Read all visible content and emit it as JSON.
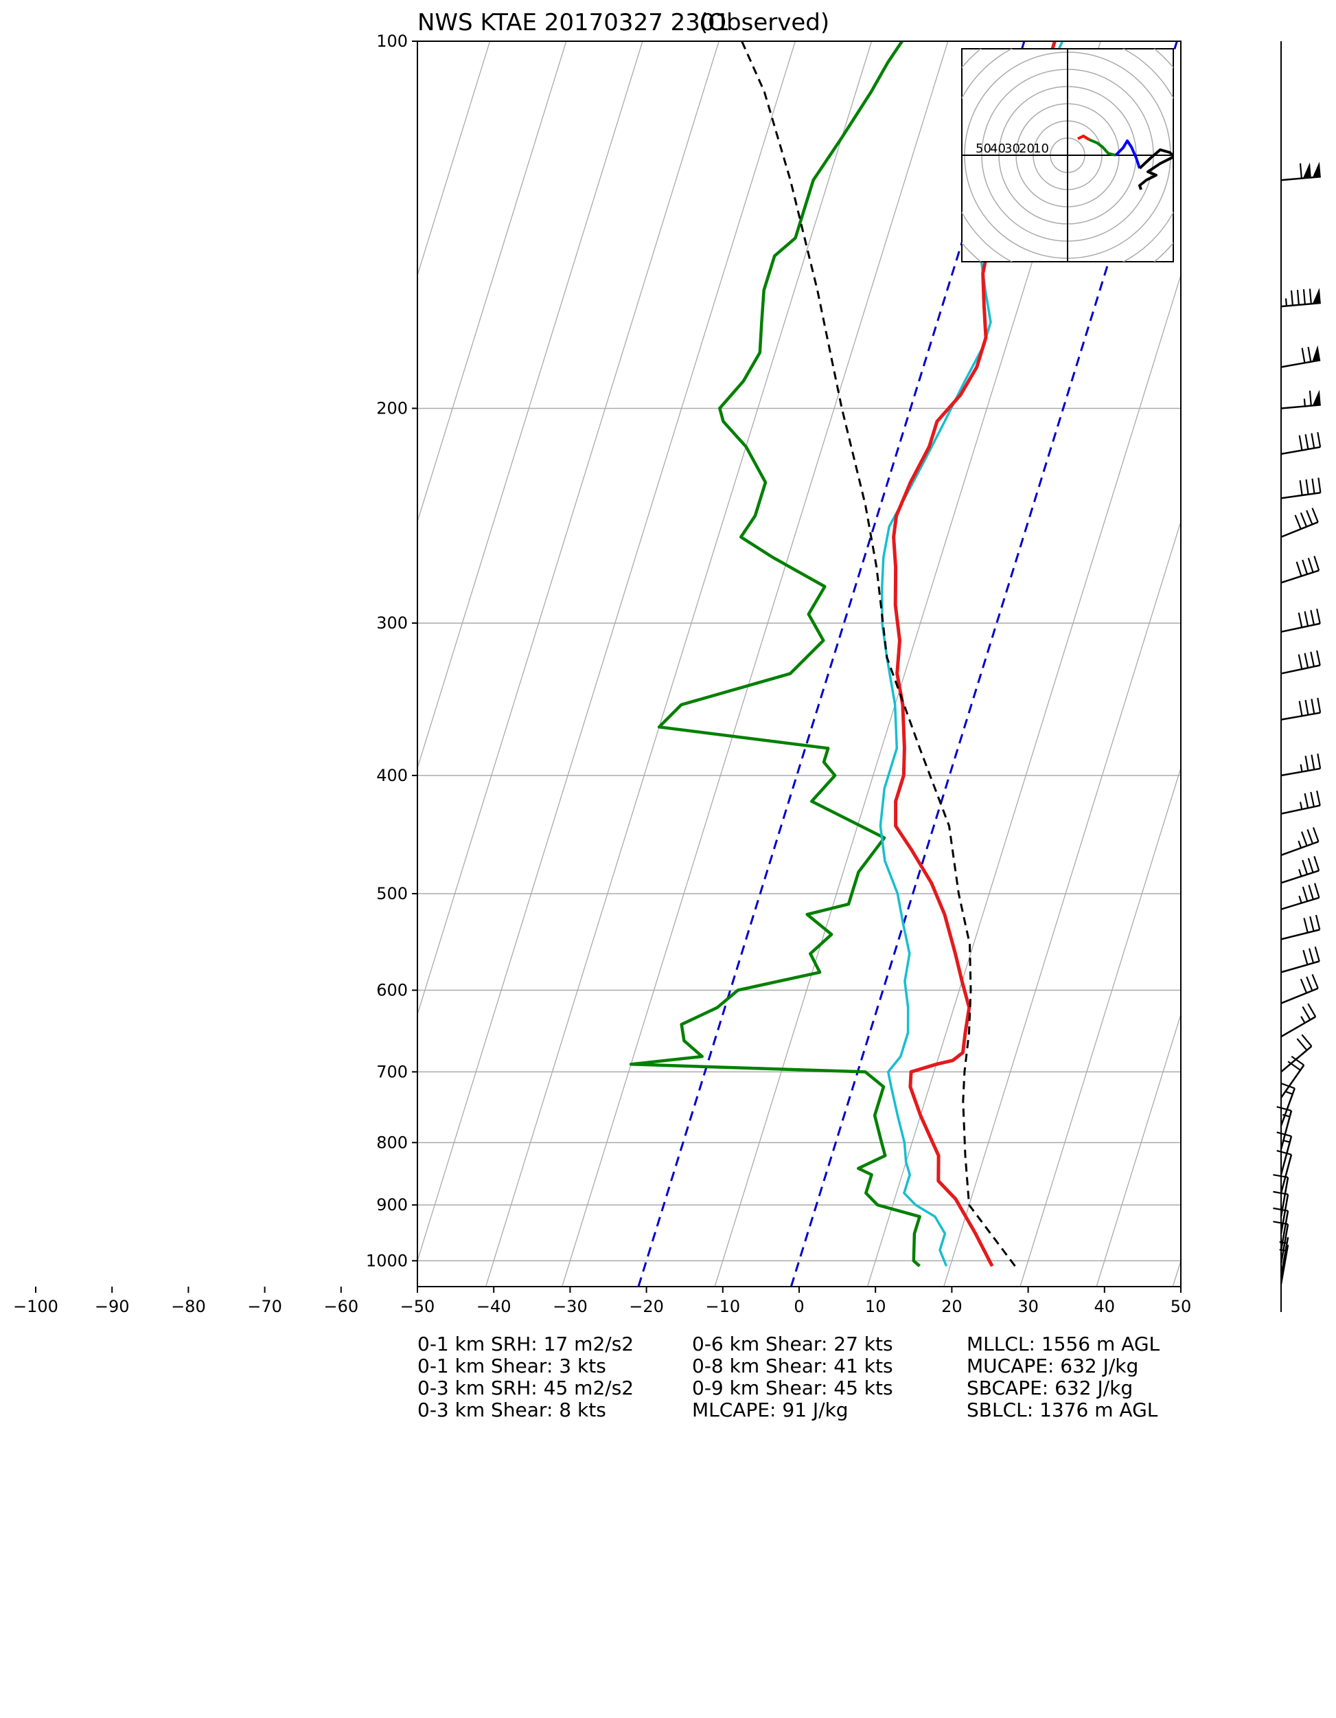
{
  "chart_data": {
    "type": "line",
    "title": "NWS KTAE 20170327 2301",
    "subtitle": "(Observed)",
    "x_ticks": [
      -100,
      -90,
      -80,
      -70,
      -60,
      -50,
      -40,
      -30,
      -20,
      -10,
      0,
      10,
      20,
      30,
      40,
      50
    ],
    "xlim": [
      -50,
      50
    ],
    "ylim": [
      1050,
      100
    ],
    "y_scale": "log",
    "y_ticks": [
      100,
      200,
      300,
      400,
      500,
      600,
      700,
      800,
      900,
      1000
    ],
    "grid": true,
    "isotherms_highlighted": [
      -20,
      0
    ],
    "colors": {
      "temperature": "#e41a1c",
      "dewpoint": "#008000",
      "wetbulb": "#17becf",
      "parcel": "#000000",
      "highlight_isotherm": "#0000cc",
      "grid": "#aaaaaa"
    },
    "series": [
      {
        "key": "temperature",
        "points": [
          [
            25.5,
            1010
          ],
          [
            22,
            950
          ],
          [
            18,
            890
          ],
          [
            15,
            860
          ],
          [
            14,
            820
          ],
          [
            10,
            760
          ],
          [
            7.5,
            720
          ],
          [
            7,
            700
          ],
          [
            10,
            690
          ],
          [
            12,
            685
          ],
          [
            13,
            675
          ],
          [
            12.5,
            650
          ],
          [
            12,
            620
          ],
          [
            10,
            590
          ],
          [
            8,
            560
          ],
          [
            5,
            520
          ],
          [
            2,
            490
          ],
          [
            -2,
            460
          ],
          [
            -5,
            440
          ],
          [
            -6,
            420
          ],
          [
            -6,
            400
          ],
          [
            -7,
            380
          ],
          [
            -9,
            350
          ],
          [
            -11,
            330
          ],
          [
            -12,
            310
          ],
          [
            -14,
            290
          ],
          [
            -15.5,
            270
          ],
          [
            -17,
            255
          ],
          [
            -17.5,
            245
          ],
          [
            -17,
            230
          ],
          [
            -16,
            215
          ],
          [
            -16,
            205
          ],
          [
            -14,
            195
          ],
          [
            -13,
            185
          ],
          [
            -13,
            175
          ],
          [
            -14.5,
            165
          ],
          [
            -16,
            155
          ],
          [
            -16.5,
            145
          ],
          [
            -17,
            135
          ],
          [
            -17,
            125
          ],
          [
            -16.5,
            115
          ],
          [
            -16,
            107
          ],
          [
            -16,
            100
          ]
        ]
      },
      {
        "key": "dewpoint",
        "points": [
          [
            16,
            1010
          ],
          [
            15,
            1000
          ],
          [
            14,
            950
          ],
          [
            14,
            920
          ],
          [
            8,
            900
          ],
          [
            6,
            880
          ],
          [
            6,
            850
          ],
          [
            4,
            840
          ],
          [
            7,
            820
          ],
          [
            6,
            800
          ],
          [
            4,
            760
          ],
          [
            4,
            720
          ],
          [
            1,
            700
          ],
          [
            -30,
            690
          ],
          [
            -21,
            680
          ],
          [
            -24,
            660
          ],
          [
            -25,
            640
          ],
          [
            -21,
            620
          ],
          [
            -19,
            600
          ],
          [
            -9,
            580
          ],
          [
            -11,
            560
          ],
          [
            -9,
            540
          ],
          [
            -13,
            520
          ],
          [
            -8,
            510
          ],
          [
            -8,
            480
          ],
          [
            -6,
            450
          ],
          [
            -17,
            420
          ],
          [
            -15,
            400
          ],
          [
            -17,
            390
          ],
          [
            -17,
            380
          ],
          [
            -40,
            365
          ],
          [
            -38,
            350
          ],
          [
            -25,
            330
          ],
          [
            -22,
            310
          ],
          [
            -25,
            295
          ],
          [
            -24,
            280
          ],
          [
            -32,
            265
          ],
          [
            -37,
            255
          ],
          [
            -36,
            245
          ],
          [
            -36,
            230
          ],
          [
            -40,
            215
          ],
          [
            -44,
            205
          ],
          [
            -45,
            200
          ],
          [
            -43,
            190
          ],
          [
            -42,
            180
          ],
          [
            -43,
            170
          ],
          [
            -44,
            160
          ],
          [
            -44,
            150
          ],
          [
            -42,
            145
          ],
          [
            -42,
            130
          ],
          [
            -40,
            120
          ],
          [
            -38,
            110
          ],
          [
            -37,
            104
          ],
          [
            -36,
            100
          ]
        ]
      },
      {
        "key": "wetbulb",
        "points": [
          [
            19.5,
            1010
          ],
          [
            18,
            980
          ],
          [
            18,
            950
          ],
          [
            16,
            920
          ],
          [
            13,
            900
          ],
          [
            11,
            880
          ],
          [
            11,
            850
          ],
          [
            10,
            830
          ],
          [
            9,
            800
          ],
          [
            7,
            760
          ],
          [
            5,
            720
          ],
          [
            4,
            700
          ],
          [
            5,
            680
          ],
          [
            5,
            650
          ],
          [
            4,
            620
          ],
          [
            2.5,
            590
          ],
          [
            2,
            560
          ],
          [
            0,
            530
          ],
          [
            -2,
            500
          ],
          [
            -5,
            470
          ],
          [
            -7,
            440
          ],
          [
            -8,
            410
          ],
          [
            -8,
            380
          ],
          [
            -10,
            350
          ],
          [
            -13,
            320
          ],
          [
            -15,
            300
          ],
          [
            -16.5,
            280
          ],
          [
            -17.5,
            265
          ],
          [
            -18,
            250
          ],
          [
            -17,
            235
          ],
          [
            -16,
            220
          ],
          [
            -15,
            205
          ],
          [
            -14,
            190
          ],
          [
            -13,
            178
          ],
          [
            -13,
            170
          ],
          [
            -15,
            160
          ],
          [
            -17,
            150
          ],
          [
            -17,
            140
          ],
          [
            -17,
            130
          ],
          [
            -17,
            120
          ],
          [
            -16,
            110
          ],
          [
            -15,
            100
          ]
        ]
      },
      {
        "key": "parcel",
        "points": [
          [
            28.5,
            1010
          ],
          [
            20,
            900
          ],
          [
            17.5,
            820
          ],
          [
            15,
            740
          ],
          [
            14,
            700
          ],
          [
            13,
            650
          ],
          [
            11.5,
            600
          ],
          [
            9.5,
            550
          ],
          [
            6,
            500
          ],
          [
            2,
            440
          ],
          [
            -5,
            380
          ],
          [
            -13,
            320
          ],
          [
            -18,
            270
          ],
          [
            -22,
            240
          ],
          [
            -29,
            200
          ],
          [
            -37,
            160
          ],
          [
            -45,
            130
          ],
          [
            -52,
            110
          ],
          [
            -57,
            100
          ]
        ]
      }
    ],
    "hodograph": {
      "ring_labels": [
        "50",
        "40",
        "30",
        "20",
        "10"
      ],
      "segment_colors": [
        "#ff0000",
        "#008000",
        "#0000ff",
        "#000000"
      ]
    },
    "wind_barbs": [
      {
        "p": 130,
        "speed": 110,
        "dir": 265
      },
      {
        "p": 165,
        "speed": 95,
        "dir": 265
      },
      {
        "p": 185,
        "speed": 70,
        "dir": 260
      },
      {
        "p": 200,
        "speed": 65,
        "dir": 265
      },
      {
        "p": 218,
        "speed": 40,
        "dir": 260
      },
      {
        "p": 237,
        "speed": 40,
        "dir": 262
      },
      {
        "p": 255,
        "speed": 40,
        "dir": 248
      },
      {
        "p": 278,
        "speed": 40,
        "dir": 252
      },
      {
        "p": 305,
        "speed": 40,
        "dir": 258
      },
      {
        "p": 330,
        "speed": 40,
        "dir": 258
      },
      {
        "p": 360,
        "speed": 40,
        "dir": 260
      },
      {
        "p": 400,
        "speed": 35,
        "dir": 260
      },
      {
        "p": 430,
        "speed": 35,
        "dir": 258
      },
      {
        "p": 465,
        "speed": 35,
        "dir": 250
      },
      {
        "p": 490,
        "speed": 35,
        "dir": 252
      },
      {
        "p": 515,
        "speed": 35,
        "dir": 253
      },
      {
        "p": 545,
        "speed": 30,
        "dir": 256
      },
      {
        "p": 580,
        "speed": 30,
        "dir": 254
      },
      {
        "p": 615,
        "speed": 30,
        "dir": 248
      },
      {
        "p": 655,
        "speed": 25,
        "dir": 240
      },
      {
        "p": 700,
        "speed": 20,
        "dir": 230
      },
      {
        "p": 735,
        "speed": 20,
        "dir": 215
      },
      {
        "p": 775,
        "speed": 15,
        "dir": 200
      },
      {
        "p": 810,
        "speed": 15,
        "dir": 195
      },
      {
        "p": 850,
        "speed": 15,
        "dir": 195
      },
      {
        "p": 880,
        "speed": 12,
        "dir": 195
      },
      {
        "p": 920,
        "speed": 12,
        "dir": 190
      },
      {
        "p": 950,
        "speed": 10,
        "dir": 190
      },
      {
        "p": 980,
        "speed": 10,
        "dir": 190
      },
      {
        "p": 1005,
        "speed": 8,
        "dir": 190
      },
      {
        "p": 1030,
        "speed": 5,
        "dir": 190
      },
      {
        "p": 1045,
        "speed": 5,
        "dir": 190
      }
    ]
  },
  "stats": {
    "col1": [
      "0-1 km SRH: 17 m2/s2",
      "0-1 km Shear: 3 kts",
      "0-3 km SRH: 45 m2/s2",
      "0-3 km Shear: 8 kts"
    ],
    "col2": [
      "0-6 km Shear: 27 kts",
      "0-8 km Shear: 41 kts",
      "0-9 km Shear: 45 kts",
      "MLCAPE: 91 J/kg"
    ],
    "col3": [
      "MLLCL: 1556 m AGL",
      "MUCAPE: 632 J/kg",
      "SBCAPE: 632 J/kg",
      "SBLCL: 1376 m AGL"
    ]
  }
}
